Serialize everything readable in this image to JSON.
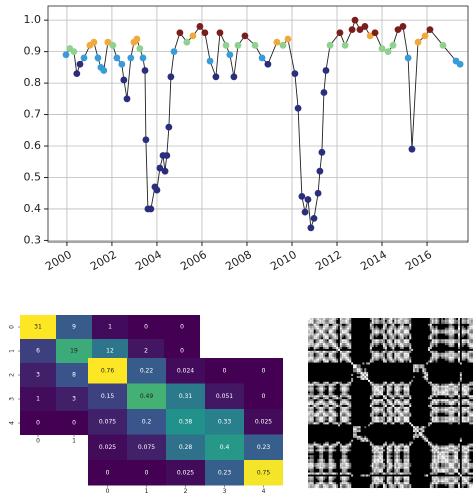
{
  "chart_data": [
    {
      "type": "line",
      "x": [
        1999.96,
        2000.13,
        2000.31,
        2000.44,
        2000.58,
        2000.76,
        2001.02,
        2001.2,
        2001.38,
        2001.51,
        2001.64,
        2001.82,
        2002.04,
        2002.22,
        2002.44,
        2002.53,
        2002.67,
        2002.84,
        2002.98,
        2003.11,
        2003.24,
        2003.38,
        2003.47,
        2003.51,
        2003.6,
        2003.73,
        2003.91,
        2004.0,
        2004.13,
        2004.27,
        2004.36,
        2004.44,
        2004.53,
        2004.62,
        2004.76,
        2005.02,
        2005.33,
        2005.6,
        2005.91,
        2006.13,
        2006.36,
        2006.62,
        2006.8,
        2007.07,
        2007.24,
        2007.42,
        2007.6,
        2007.91,
        2008.36,
        2008.67,
        2008.93,
        2009.33,
        2009.6,
        2009.82,
        2010.13,
        2010.27,
        2010.44,
        2010.58,
        2010.71,
        2010.84,
        2010.98,
        2011.16,
        2011.24,
        2011.33,
        2011.42,
        2011.51,
        2011.69,
        2012.13,
        2012.36,
        2012.67,
        2012.8,
        2013.02,
        2013.24,
        2013.47,
        2013.69,
        2014.0,
        2014.27,
        2014.49,
        2014.71,
        2014.93,
        2015.16,
        2015.33,
        2015.6,
        2015.91,
        2016.13,
        2016.71,
        2017.29,
        2017.47
      ],
      "series": [
        {
          "color": "#222222",
          "values": [
            0.89,
            0.91,
            0.9,
            0.83,
            0.86,
            0.88,
            0.92,
            0.93,
            0.88,
            0.85,
            0.84,
            0.93,
            0.92,
            0.88,
            0.86,
            0.81,
            0.75,
            0.88,
            0.93,
            0.94,
            0.91,
            0.88,
            0.84,
            0.62,
            0.4,
            0.4,
            0.47,
            0.46,
            0.53,
            0.57,
            0.52,
            0.57,
            0.66,
            0.82,
            0.9,
            0.96,
            0.93,
            0.95,
            0.98,
            0.96,
            0.87,
            0.82,
            0.96,
            0.92,
            0.89,
            0.82,
            0.92,
            0.95,
            0.92,
            0.88,
            0.86,
            0.93,
            0.92,
            0.94,
            0.83,
            0.72,
            0.44,
            0.39,
            0.43,
            0.34,
            0.37,
            0.45,
            0.52,
            0.58,
            0.77,
            0.84,
            0.92,
            0.96,
            0.92,
            0.97,
            1.0,
            0.97,
            0.98,
            0.95,
            0.96,
            0.91,
            0.9,
            0.92,
            0.97,
            0.98,
            0.88,
            0.59,
            0.93,
            0.95,
            0.97,
            0.92,
            0.87,
            0.86
          ],
          "point_colors": [
            "#3a9bd9",
            "#8fd18f",
            "#8fd18f",
            "#2a2e7c",
            "#2a2e7c",
            "#3a9bd9",
            "#f2a93b",
            "#f2a93b",
            "#3a9bd9",
            "#3a9bd9",
            "#3a9bd9",
            "#f2a93b",
            "#8fd18f",
            "#3a9bd9",
            "#3a9bd9",
            "#2a2e7c",
            "#2a2e7c",
            "#3a9bd9",
            "#f2a93b",
            "#f2a93b",
            "#8fd18f",
            "#3a9bd9",
            "#2a2e7c",
            "#2a2e7c",
            "#2a2e7c",
            "#2a2e7c",
            "#2a2e7c",
            "#2a2e7c",
            "#2a2e7c",
            "#2a2e7c",
            "#2a2e7c",
            "#2a2e7c",
            "#2a2e7c",
            "#2a2e7c",
            "#3a9bd9",
            "#7b1d1d",
            "#8fd18f",
            "#f2a93b",
            "#7b1d1d",
            "#7b1d1d",
            "#3a9bd9",
            "#2a2e7c",
            "#7b1d1d",
            "#8fd18f",
            "#3a9bd9",
            "#2a2e7c",
            "#8fd18f",
            "#7b1d1d",
            "#8fd18f",
            "#3a9bd9",
            "#2a2e7c",
            "#f2a93b",
            "#8fd18f",
            "#f2a93b",
            "#2a2e7c",
            "#2a2e7c",
            "#2a2e7c",
            "#2a2e7c",
            "#2a2e7c",
            "#2a2e7c",
            "#2a2e7c",
            "#2a2e7c",
            "#2a2e7c",
            "#2a2e7c",
            "#2a2e7c",
            "#2a2e7c",
            "#8fd18f",
            "#7b1d1d",
            "#8fd18f",
            "#7b1d1d",
            "#7b1d1d",
            "#7b1d1d",
            "#7b1d1d",
            "#f2a93b",
            "#7b1d1d",
            "#8fd18f",
            "#8fd18f",
            "#8fd18f",
            "#7b1d1d",
            "#7b1d1d",
            "#3a9bd9",
            "#2a2e7c",
            "#f2a93b",
            "#f2a93b",
            "#7b1d1d",
            "#8fd18f",
            "#3a9bd9",
            "#3a9bd9"
          ]
        }
      ],
      "xlim": [
        1999.16,
        2017.82
      ],
      "xticks": [
        2000,
        2002,
        2004,
        2006,
        2008,
        2010,
        2012,
        2014,
        2016
      ],
      "ylim": [
        0.295,
        1.045
      ],
      "yticks": [
        0.3,
        0.4,
        0.5,
        0.6,
        0.7,
        0.8,
        0.9,
        {
          "value": 1,
          "label": "1.0"
        }
      ],
      "grid": true
    },
    {
      "type": "heatmap",
      "values": [
        [
          31,
          9,
          1,
          0,
          0
        ],
        [
          6,
          19,
          12,
          2,
          0
        ],
        [
          3,
          8,
          null,
          null,
          null
        ],
        [
          1,
          3,
          null,
          null,
          null
        ],
        [
          0,
          0,
          null,
          null,
          null
        ]
      ],
      "clim": [
        0,
        31
      ],
      "xticks": [
        0,
        1
      ],
      "yticks": [
        0,
        1,
        2,
        3,
        4
      ]
    },
    {
      "type": "heatmap",
      "values": [
        [
          0.76,
          0.22,
          0.024,
          0,
          0
        ],
        [
          0.15,
          0.49,
          0.31,
          0.051,
          0
        ],
        [
          0.075,
          0.2,
          0.38,
          0.33,
          0.025
        ],
        [
          0.025,
          0.075,
          0.28,
          0.4,
          0.23
        ],
        [
          0,
          0,
          0.025,
          0.23,
          0.75
        ]
      ],
      "clim": [
        0,
        0.76
      ],
      "xticks": [
        0,
        1,
        2,
        3,
        4
      ]
    }
  ]
}
